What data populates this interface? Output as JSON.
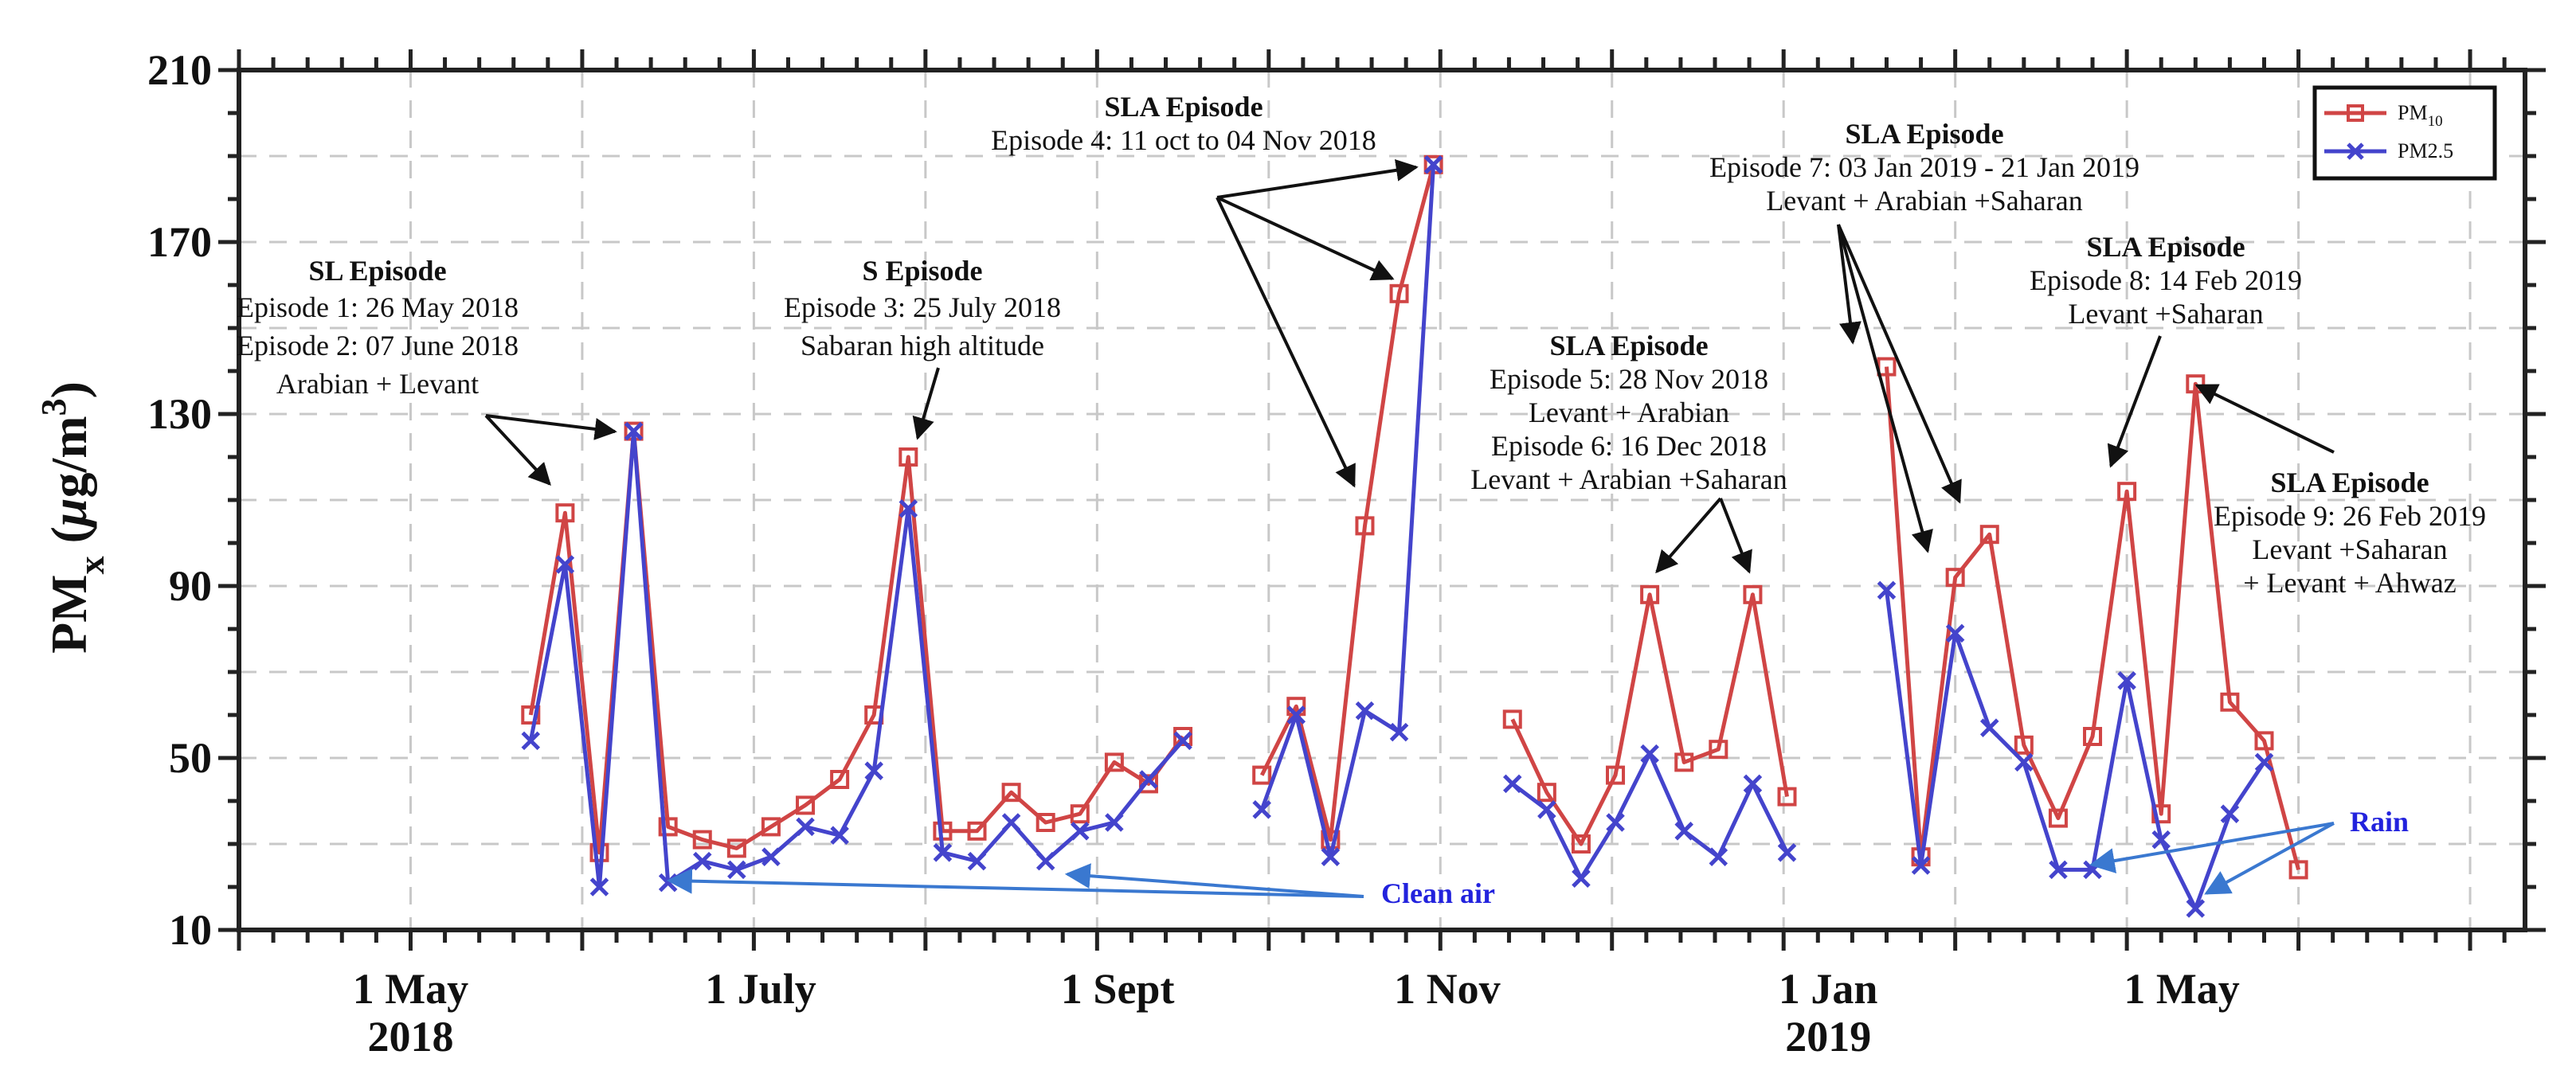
{
  "chart_data": {
    "type": "line",
    "ylabel": {
      "main": "PM",
      "sub": "x",
      "rest": " (",
      "mu": "μ",
      "unit": "g/m",
      "sup": "3",
      "close": ")"
    },
    "ylim": [
      10,
      210
    ],
    "yticks": [
      10,
      50,
      90,
      130,
      170,
      210
    ],
    "xlim": [
      0,
      666
    ],
    "xticks": [
      {
        "pos": 50,
        "label": [
          "1 May",
          "2018"
        ]
      },
      {
        "pos": 152,
        "label": [
          "1 July"
        ]
      },
      {
        "pos": 256,
        "label": [
          "1 Sept"
        ]
      },
      {
        "pos": 352,
        "label": [
          "1 Nov"
        ]
      },
      {
        "pos": 463,
        "label": [
          "1 Jan",
          "2019"
        ]
      },
      {
        "pos": 566,
        "label": [
          "1 May"
        ]
      }
    ],
    "series": [
      {
        "name": "PM10",
        "legend": {
          "main": "PM",
          "sub": "10"
        },
        "color": "#d04545",
        "marker": "square",
        "segments": [
          [
            [
              85,
              60
            ],
            [
              95,
              107
            ],
            [
              105,
              28
            ],
            [
              115,
              126
            ],
            [
              125,
              34
            ],
            [
              135,
              31
            ],
            [
              145,
              29
            ],
            [
              155,
              34
            ],
            [
              165,
              39
            ],
            [
              175,
              45
            ],
            [
              185,
              60
            ],
            [
              195,
              120
            ],
            [
              205,
              33
            ],
            [
              215,
              33
            ],
            [
              225,
              42
            ],
            [
              235,
              35
            ],
            [
              245,
              37
            ],
            [
              255,
              49
            ],
            [
              265,
              44
            ],
            [
              275,
              55
            ]
          ],
          [
            [
              298,
              46
            ],
            [
              308,
              62
            ],
            [
              318,
              31
            ],
            [
              328,
              104
            ],
            [
              338,
              158
            ],
            [
              348,
              188
            ]
          ],
          [
            [
              371,
              59
            ],
            [
              381,
              42
            ],
            [
              391,
              30
            ],
            [
              401,
              46
            ],
            [
              411,
              88
            ],
            [
              421,
              49
            ],
            [
              431,
              52
            ],
            [
              441,
              88
            ],
            [
              451,
              41
            ]
          ],
          [
            [
              480,
              141
            ],
            [
              490,
              27
            ],
            [
              500,
              92
            ],
            [
              510,
              102
            ],
            [
              520,
              53
            ],
            [
              530,
              36
            ],
            [
              540,
              55
            ],
            [
              550,
              112
            ],
            [
              560,
              37
            ],
            [
              570,
              137
            ],
            [
              580,
              63
            ],
            [
              590,
              54
            ],
            [
              600,
              24
            ]
          ]
        ]
      },
      {
        "name": "PM2.5",
        "legend": {
          "main": "PM2.5"
        },
        "color": "#4444cc",
        "marker": "x",
        "segments": [
          [
            [
              85,
              54
            ],
            [
              95,
              95
            ],
            [
              105,
              20
            ],
            [
              115,
              126
            ],
            [
              125,
              21
            ],
            [
              135,
              26
            ],
            [
              145,
              24
            ],
            [
              155,
              27
            ],
            [
              165,
              34
            ],
            [
              175,
              32
            ],
            [
              185,
              47
            ],
            [
              195,
              108
            ],
            [
              205,
              28
            ],
            [
              215,
              26
            ],
            [
              225,
              35
            ],
            [
              235,
              26
            ],
            [
              245,
              33
            ],
            [
              255,
              35
            ],
            [
              265,
              45
            ],
            [
              275,
              54
            ]
          ],
          [
            [
              298,
              38
            ],
            [
              308,
              60
            ],
            [
              318,
              27
            ],
            [
              328,
              61
            ],
            [
              338,
              56
            ],
            [
              348,
              188
            ]
          ],
          [
            [
              371,
              44
            ],
            [
              381,
              38
            ],
            [
              391,
              22
            ],
            [
              401,
              35
            ],
            [
              411,
              51
            ],
            [
              421,
              33
            ],
            [
              431,
              27
            ],
            [
              441,
              44
            ],
            [
              451,
              28
            ]
          ],
          [
            [
              480,
              89
            ],
            [
              490,
              25
            ],
            [
              500,
              79
            ],
            [
              510,
              57
            ],
            [
              520,
              49
            ],
            [
              530,
              24
            ],
            [
              540,
              24
            ],
            [
              550,
              68
            ],
            [
              560,
              31
            ],
            [
              570,
              15
            ],
            [
              580,
              37
            ],
            [
              590,
              49
            ]
          ]
        ]
      }
    ],
    "annotations": [
      {
        "title": "SL Episode",
        "lines": [
          "Episode 1: 26 May 2018",
          "Episode 2: 07 June 2018",
          "Arabian + Levant"
        ]
      },
      {
        "title": "S Episode",
        "lines": [
          "Episode 3: 25 July 2018",
          "Sabaran high altitude"
        ]
      },
      {
        "title": "SLA Episode",
        "lines": [
          "Episode 4: 11 oct to 04 Nov 2018"
        ]
      },
      {
        "title": "SLA Episode",
        "lines": [
          "Episode 5: 28 Nov 2018",
          "Levant + Arabian",
          "Episode 6: 16 Dec 2018",
          "Levant + Arabian +Saharan"
        ]
      },
      {
        "title": "SLA Episode",
        "lines": [
          "Episode 7: 03 Jan 2019 - 21 Jan 2019",
          "Levant + Arabian +Saharan"
        ]
      },
      {
        "title": "SLA Episode",
        "lines": [
          "Episode 8: 14 Feb 2019",
          "Levant +Saharan"
        ]
      },
      {
        "title": "SLA Episode",
        "lines": [
          "Episode 9: 26 Feb 2019",
          "Levant +Saharan",
          "+ Levant + Ahwaz"
        ]
      }
    ],
    "labels": {
      "clean_air": "Clean air",
      "rain": "Rain"
    }
  }
}
